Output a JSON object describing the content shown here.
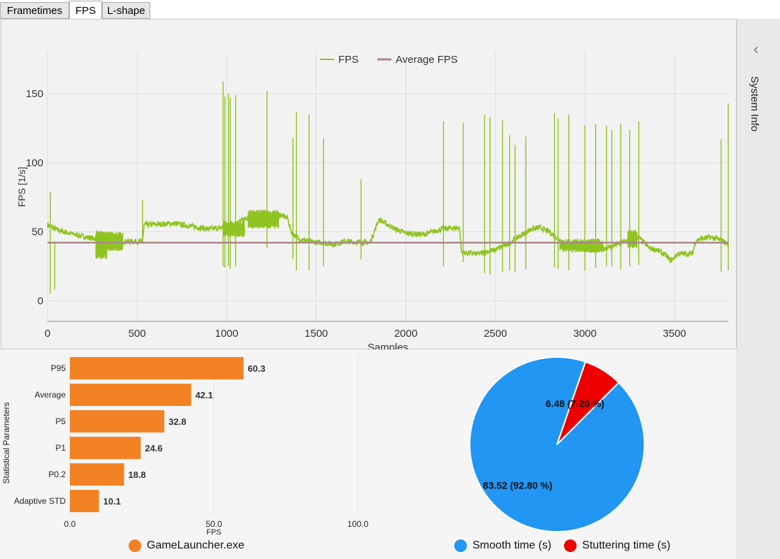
{
  "tabs": [
    {
      "label": "Frametimes",
      "active": false
    },
    {
      "label": "FPS",
      "active": true
    },
    {
      "label": "L-shape",
      "active": false
    }
  ],
  "sidebar": {
    "label": "System Info",
    "toggle_icon": "chevron-left-icon"
  },
  "chart_data": [
    {
      "type": "line",
      "xlabel": "Samples",
      "ylabel": "FPS [1/s]",
      "xlim": [
        0,
        3800
      ],
      "ylim": [
        -15,
        180
      ],
      "xticks": [
        0,
        500,
        1000,
        1500,
        2000,
        2500,
        3000,
        3500
      ],
      "yticks": [
        0,
        50,
        100,
        150
      ],
      "grid": true,
      "legend_position": "top-center",
      "series": [
        {
          "name": "FPS",
          "color": "#8fc31f",
          "base": [
            [
              0,
              55
            ],
            [
              60,
              51
            ],
            [
              150,
              48
            ],
            [
              260,
              45
            ],
            [
              300,
              46
            ],
            [
              350,
              48
            ],
            [
              390,
              44
            ],
            [
              430,
              43
            ],
            [
              530,
              43
            ],
            [
              540,
              55
            ],
            [
              700,
              56
            ],
            [
              800,
              54
            ],
            [
              900,
              52
            ],
            [
              1000,
              53
            ],
            [
              1100,
              59
            ],
            [
              1200,
              62
            ],
            [
              1280,
              63
            ],
            [
              1340,
              60
            ],
            [
              1360,
              50
            ],
            [
              1400,
              45
            ],
            [
              1460,
              43
            ],
            [
              1600,
              41
            ],
            [
              1660,
              43
            ],
            [
              1800,
              42
            ],
            [
              1850,
              59
            ],
            [
              1940,
              52
            ],
            [
              2000,
              49
            ],
            [
              2100,
              48
            ],
            [
              2200,
              52
            ],
            [
              2300,
              53
            ],
            [
              2310,
              35
            ],
            [
              2400,
              34
            ],
            [
              2500,
              37
            ],
            [
              2580,
              42
            ],
            [
              2650,
              48
            ],
            [
              2700,
              52
            ],
            [
              2750,
              53
            ],
            [
              2800,
              50
            ],
            [
              2860,
              44
            ],
            [
              2900,
              40
            ],
            [
              2960,
              39
            ],
            [
              3060,
              36
            ],
            [
              3160,
              40
            ],
            [
              3240,
              44
            ],
            [
              3300,
              46
            ],
            [
              3360,
              38
            ],
            [
              3400,
              37
            ],
            [
              3450,
              33
            ],
            [
              3480,
              29
            ],
            [
              3520,
              34
            ],
            [
              3600,
              34
            ],
            [
              3620,
              44
            ],
            [
              3700,
              46
            ],
            [
              3760,
              44
            ],
            [
              3800,
              41
            ]
          ],
          "band": [
            [
              270,
              330,
              30,
              51
            ],
            [
              330,
              420,
              36,
              50
            ],
            [
              980,
              1100,
              46,
              58
            ],
            [
              1120,
              1290,
              52,
              66
            ],
            [
              2860,
              3100,
              35,
              45
            ],
            [
              3240,
              3290,
              38,
              52
            ]
          ],
          "spikes": [
            [
              15,
              79,
              5
            ],
            [
              40,
              8
            ],
            [
              530,
              73
            ],
            [
              980,
              159,
              25
            ],
            [
              990,
              148,
              24
            ],
            [
              1010,
              150,
              25
            ],
            [
              1020,
              147,
              23
            ],
            [
              1050,
              149,
              25
            ],
            [
              1225,
              152,
              38
            ],
            [
              1370,
              118,
              30
            ],
            [
              1390,
              137,
              22
            ],
            [
              1460,
              135,
              22
            ],
            [
              1540,
              118,
              25
            ],
            [
              1750,
              88,
              30
            ],
            [
              2210,
              130,
              25
            ],
            [
              2320,
              129,
              28
            ],
            [
              2440,
              135,
              20
            ],
            [
              2470,
              133,
              19
            ],
            [
              2540,
              131,
              21
            ],
            [
              2580,
              120,
              22
            ],
            [
              2610,
              113,
              21
            ],
            [
              2670,
              119,
              23
            ],
            [
              2830,
              136,
              24
            ],
            [
              2850,
              132,
              23
            ],
            [
              2910,
              135,
              22
            ],
            [
              3000,
              127,
              22
            ],
            [
              3060,
              128,
              24
            ],
            [
              3120,
              127,
              25
            ],
            [
              3150,
              124,
              25
            ],
            [
              3200,
              128,
              23
            ],
            [
              3250,
              124,
              25
            ],
            [
              3300,
              130,
              26
            ],
            [
              3760,
              117,
              21
            ],
            [
              3800,
              143,
              22
            ]
          ]
        },
        {
          "name": "Average FPS",
          "color": "#a88888",
          "values": [
            [
              0,
              42.1
            ],
            [
              3800,
              42.1
            ]
          ]
        }
      ]
    },
    {
      "type": "bar",
      "orientation": "horizontal",
      "categories": [
        "P95",
        "Average",
        "P5",
        "P1",
        "P0.2",
        "Adaptive STD"
      ],
      "series": [
        {
          "name": "GameLauncher.exe",
          "color": "#f28124",
          "values": [
            60.3,
            42.1,
            32.8,
            24.6,
            18.8,
            10.1
          ]
        }
      ],
      "xlabel": "FPS",
      "ylabel": "Statistical Parameters",
      "xlim": [
        0,
        100
      ],
      "xticks": [
        0,
        50,
        100
      ],
      "xtick_labels": [
        "0.0",
        "50.0",
        "100.0"
      ],
      "value_labels": [
        "60.3",
        "42.1",
        "32.8",
        "24.6",
        "18.8",
        "10.1"
      ],
      "legend_position": "bottom"
    },
    {
      "type": "pie",
      "labels": [
        "Smooth time (s)",
        "Stuttering time (s)"
      ],
      "values": [
        83.52,
        6.48
      ],
      "slice_labels": [
        "83.52 (92.80 %)",
        "6.48 (7.20 %)"
      ],
      "colors": [
        "#2196f3",
        "#ee0000"
      ],
      "legend_position": "bottom"
    }
  ]
}
